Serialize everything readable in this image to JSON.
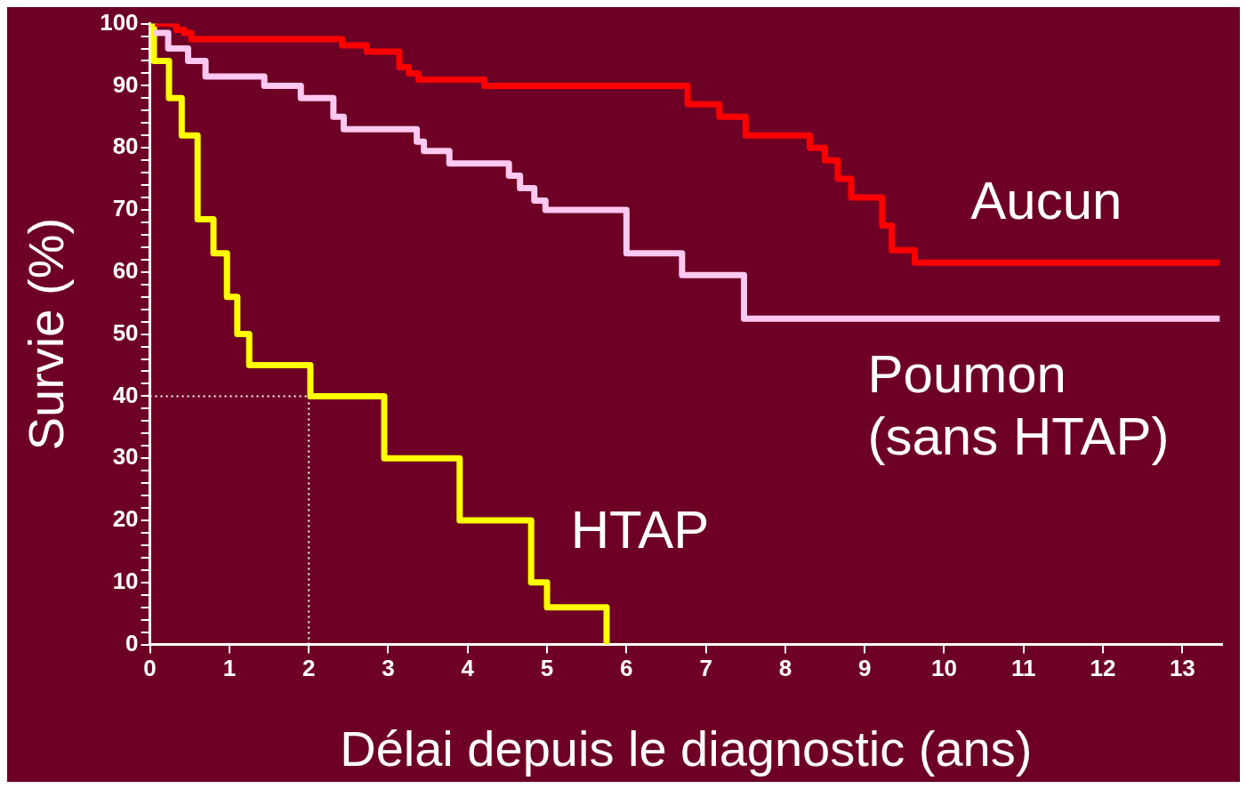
{
  "chart_data": {
    "type": "step",
    "xlabel": "Délai depuis le diagnostic (ans)",
    "ylabel": "Survie (%)",
    "xlim": [
      0,
      13.5
    ],
    "xticks": [
      0,
      1,
      2,
      3,
      4,
      5,
      6,
      7,
      8,
      9,
      10,
      11,
      12,
      13
    ],
    "ylim": [
      0,
      100
    ],
    "yticks": [
      0,
      {
        "value": 2,
        "label": null
      },
      {
        "value": 4,
        "label": null
      },
      {
        "value": 6,
        "label": null
      },
      {
        "value": 8,
        "label": null
      },
      10,
      {
        "value": 12,
        "label": null
      },
      {
        "value": 14,
        "label": null
      },
      {
        "value": 16,
        "label": null
      },
      {
        "value": 18,
        "label": null
      },
      20,
      {
        "value": 22,
        "label": null
      },
      {
        "value": 24,
        "label": null
      },
      {
        "value": 26,
        "label": null
      },
      {
        "value": 28,
        "label": null
      },
      30,
      {
        "value": 32,
        "label": null
      },
      {
        "value": 34,
        "label": null
      },
      {
        "value": 36,
        "label": null
      },
      {
        "value": 38,
        "label": null
      },
      40,
      {
        "value": 42,
        "label": null
      },
      {
        "value": 44,
        "label": null
      },
      {
        "value": 46,
        "label": null
      },
      {
        "value": 48,
        "label": null
      },
      50,
      {
        "value": 52,
        "label": null
      },
      {
        "value": 54,
        "label": null
      },
      {
        "value": 56,
        "label": null
      },
      {
        "value": 58,
        "label": null
      },
      60,
      {
        "value": 62,
        "label": null
      },
      {
        "value": 64,
        "label": null
      },
      {
        "value": 66,
        "label": null
      },
      {
        "value": 68,
        "label": null
      },
      70,
      {
        "value": 72,
        "label": null
      },
      {
        "value": 74,
        "label": null
      },
      {
        "value": 76,
        "label": null
      },
      {
        "value": 78,
        "label": null
      },
      80,
      {
        "value": 82,
        "label": null
      },
      {
        "value": 84,
        "label": null
      },
      {
        "value": 86,
        "label": null
      },
      {
        "value": 88,
        "label": null
      },
      90,
      {
        "value": 92,
        "label": null
      },
      {
        "value": 94,
        "label": null
      },
      {
        "value": 96,
        "label": null
      },
      {
        "value": 98,
        "label": null
      },
      100
    ],
    "grid": false,
    "legend": false,
    "marker": "none",
    "line_style": "solid",
    "series": [
      {
        "name": "Aucun",
        "color": "#ff0000",
        "x": [
          0.06,
          0.33,
          0.43,
          0.52,
          2.42,
          2.73,
          3.14,
          3.26,
          3.38,
          4.21,
          6.77,
          7.17,
          7.5,
          8.31,
          8.5,
          8.66,
          8.83,
          9.22,
          9.34,
          9.63,
          13.47
        ],
        "values": [
          100,
          99,
          98.5,
          97.5,
          96.5,
          95.5,
          93,
          92,
          91,
          90,
          87,
          85,
          82,
          80,
          78,
          75,
          72,
          67.5,
          63.5,
          61.5,
          61.5
        ]
      },
      {
        "name": "Poumon\n(sans HTAP)",
        "color": "#ffc8f0",
        "x": [
          0.05,
          0.23,
          0.48,
          0.7,
          1.44,
          1.9,
          2.31,
          2.44,
          3.36,
          3.45,
          3.77,
          4.52,
          4.66,
          4.84,
          4.98,
          6.0,
          6.7,
          7.48,
          13.47
        ],
        "values": [
          98.5,
          96,
          94,
          91.5,
          90,
          88,
          85,
          83,
          81,
          79.5,
          77.5,
          75.5,
          73.5,
          71.5,
          70,
          63,
          59.5,
          52.5,
          52.5
        ]
      },
      {
        "name": "HTAP",
        "color": "#ffff00",
        "x": [
          0,
          0.05,
          0.24,
          0.4,
          0.6,
          0.8,
          0.97,
          1.1,
          1.25,
          2.02,
          2.95,
          3.9,
          4.8,
          5.0,
          5.75
        ],
        "values": [
          100,
          94,
          88,
          82,
          68.5,
          63,
          56,
          50,
          45,
          40,
          30,
          20,
          10,
          6,
          0
        ]
      }
    ],
    "ref_lines": [
      {
        "axis": "y",
        "value": 40,
        "color": "#ffffff",
        "line_style": "dotted"
      },
      {
        "axis": "x",
        "value": 2,
        "color": "#ffffff",
        "line_style": "dotted"
      }
    ]
  }
}
